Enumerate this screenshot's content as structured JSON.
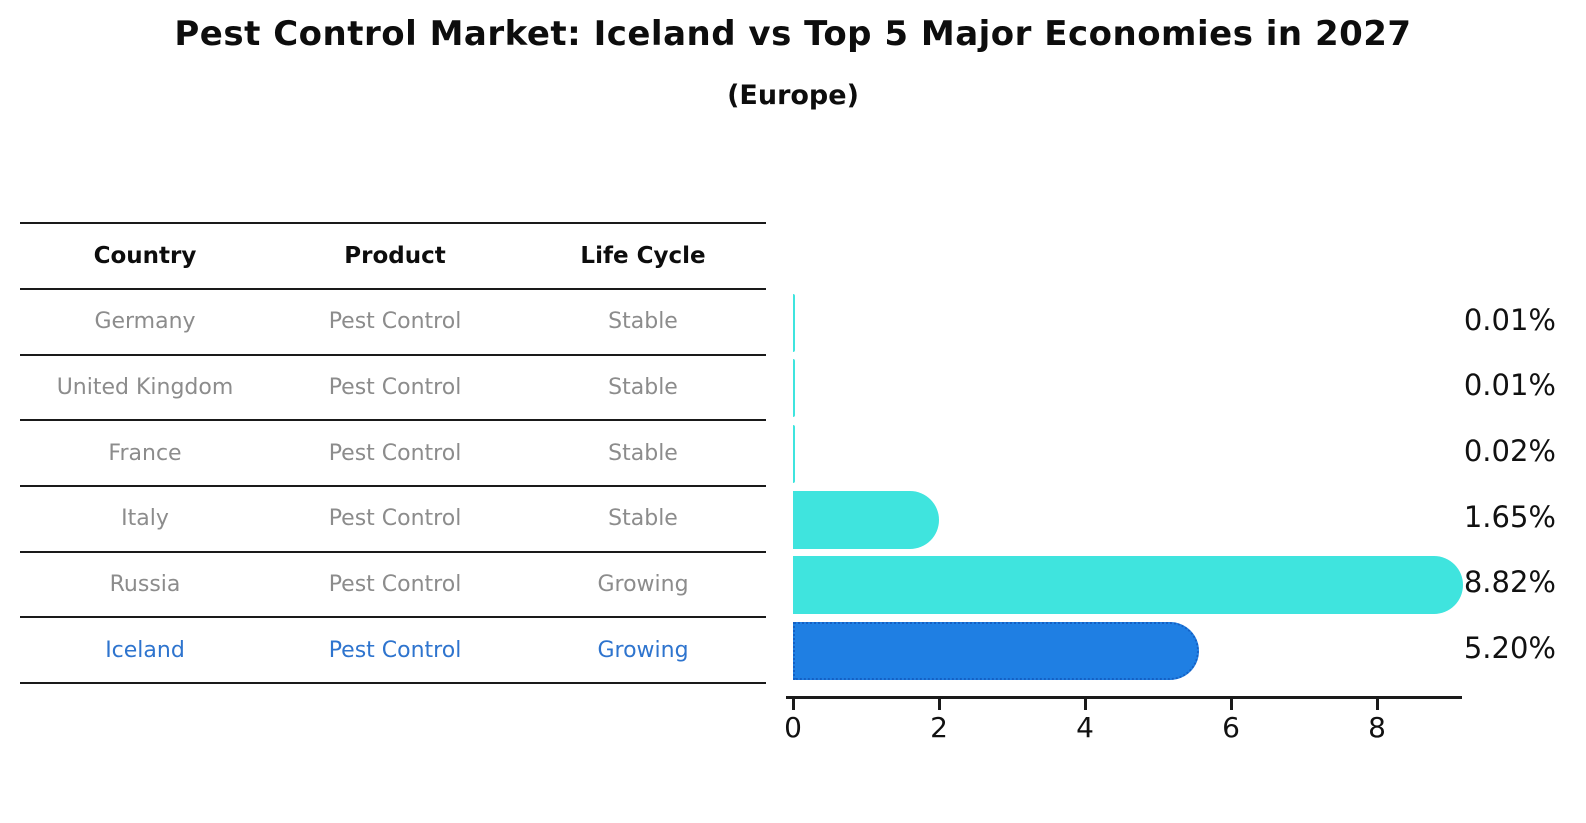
{
  "chart_data": {
    "type": "bar",
    "orientation": "horizontal",
    "title": "Pest Control Market: Iceland vs Top 5 Major Economies in 2027",
    "subtitle": "(Europe)",
    "categories": [
      "Germany",
      "United Kingdom",
      "France",
      "Italy",
      "Russia",
      "Iceland"
    ],
    "values": [
      0.01,
      0.01,
      0.02,
      1.65,
      8.82,
      5.2
    ],
    "data_labels": [
      "0.01%",
      "0.01%",
      "0.02%",
      "1.65%",
      "8.82%",
      "5.20%"
    ],
    "unit": "%",
    "x_ticks": [
      0,
      2,
      4,
      6,
      8
    ],
    "xlim": [
      0,
      9.2
    ],
    "grid": false,
    "legend": false,
    "highlight_index": 5
  },
  "table": {
    "columns": [
      "Country",
      "Product",
      "Life Cycle"
    ],
    "rows": [
      {
        "country": "Germany",
        "product": "Pest Control",
        "life_cycle": "Stable",
        "highlight": false
      },
      {
        "country": "United Kingdom",
        "product": "Pest Control",
        "life_cycle": "Stable",
        "highlight": false
      },
      {
        "country": "France",
        "product": "Pest Control",
        "life_cycle": "Stable",
        "highlight": false
      },
      {
        "country": "Italy",
        "product": "Pest Control",
        "life_cycle": "Stable",
        "highlight": false
      },
      {
        "country": "Russia",
        "product": "Pest Control",
        "life_cycle": "Growing",
        "highlight": false
      },
      {
        "country": "Iceland",
        "product": "Pest Control",
        "life_cycle": "Growing",
        "highlight": true
      }
    ]
  },
  "colors": {
    "bar_cyan": "#3fe4de",
    "bar_blue": "#1f7fe3",
    "bar_blue_border": "#1460c4",
    "highlight_text": "#2e74ce",
    "muted_text": "#8c8c8c",
    "ink": "#141414"
  }
}
